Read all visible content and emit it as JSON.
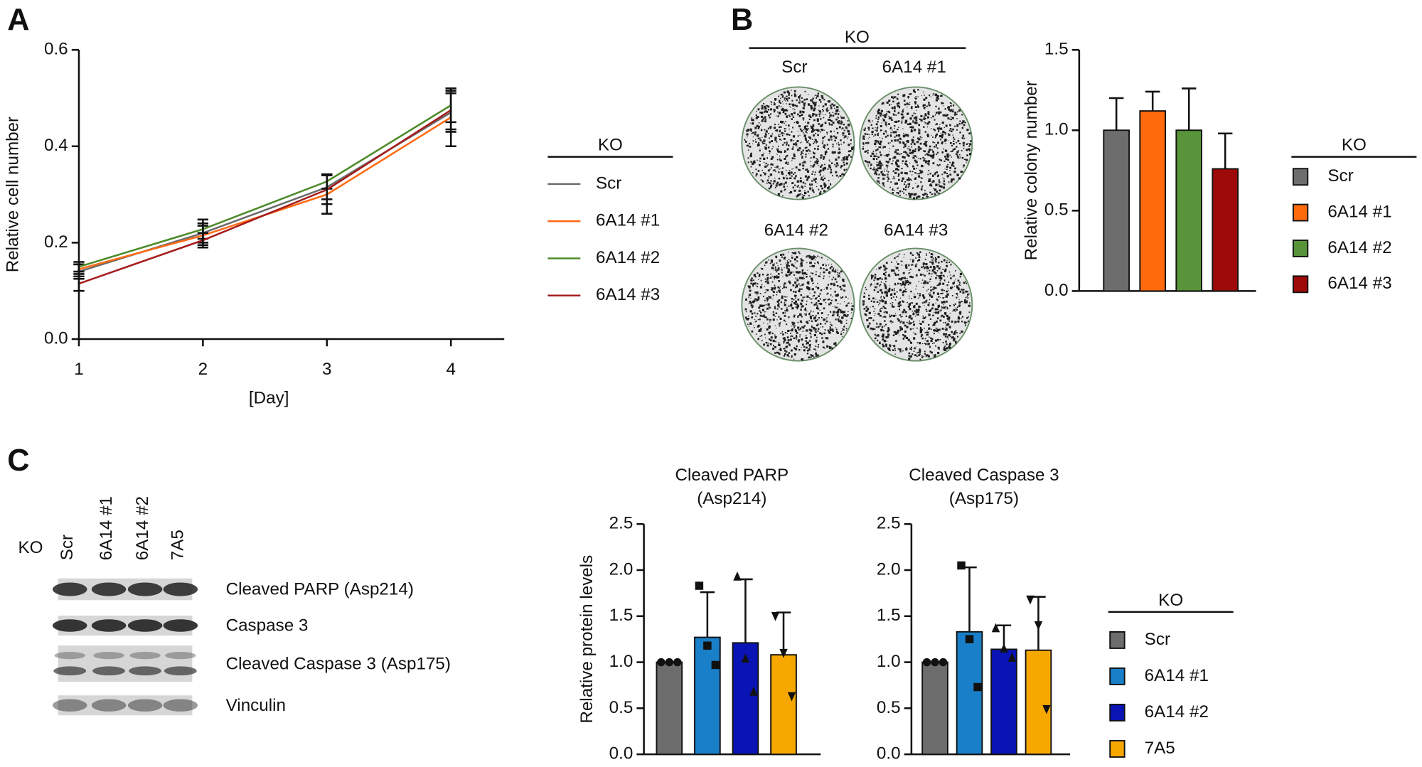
{
  "panel_labels": [
    "A",
    "B",
    "C"
  ],
  "colony_assay": {
    "header": "KO",
    "wells": [
      "Scr",
      "6A14 #1",
      "6A14 #2",
      "6A14 #3"
    ]
  },
  "western_blot": {
    "row_label": "KO",
    "lanes": [
      "Scr",
      "6A14 #1",
      "6A14 #2",
      "7A5"
    ],
    "bands": [
      "Cleaved PARP (Asp214)",
      "Caspase 3",
      "Cleaved Caspase 3 (Asp175)",
      "Vinculin"
    ]
  },
  "chart_data": [
    {
      "type": "line",
      "x": [
        1,
        2,
        3,
        4
      ],
      "xlim": [
        1,
        4.43
      ],
      "xticks": [
        1,
        2,
        3,
        4
      ],
      "ylim": [
        0,
        0.6
      ],
      "yticks": [
        {
          "value": 0,
          "label": "0.0"
        },
        0.2,
        0.4,
        0.6
      ],
      "xlabel": "[Day]",
      "ylabel": "Relative cell number",
      "legend_title": "KO",
      "series": [
        {
          "name": "Scr",
          "color": "#6b6b6b",
          "values": [
            0.14,
            0.22,
            0.315,
            0.47
          ],
          "errors": [
            0.015,
            0.02,
            0.025,
            0.04
          ]
        },
        {
          "name": "6A14 #1",
          "color": "#ff6a13",
          "values": [
            0.145,
            0.215,
            0.3,
            0.46
          ],
          "errors": [
            0.01,
            0.02,
            0.04,
            0.06
          ]
        },
        {
          "name": "6A14 #2",
          "color": "#4e8b2a",
          "values": [
            0.15,
            0.228,
            0.327,
            0.485
          ],
          "errors": [
            0.01,
            0.02,
            0.015,
            0.035
          ]
        },
        {
          "name": "6A14 #3",
          "color": "#a51c1c",
          "values": [
            0.115,
            0.205,
            0.31,
            0.475
          ],
          "errors": [
            0.015,
            0.015,
            0.03,
            0.04
          ]
        }
      ]
    },
    {
      "type": "bar",
      "categories": [
        "Scr",
        "6A14 #1",
        "6A14 #2",
        "6A14 #3"
      ],
      "values": [
        1.0,
        1.12,
        1.0,
        0.76
      ],
      "errors": [
        0.2,
        0.12,
        0.26,
        0.22
      ],
      "colors": [
        "#6d6d6d",
        "#ff6a0d",
        "#58943a",
        "#9e0a0a"
      ],
      "ylim": [
        0,
        1.5
      ],
      "yticks": [
        {
          "value": 0,
          "label": "0.0"
        },
        0.5,
        {
          "value": 1,
          "label": "1.0"
        },
        1.5
      ],
      "ylabel": "Relative colony number",
      "legend_title": "KO"
    },
    {
      "type": "bar",
      "title": "Cleaved PARP",
      "subtitle": "(Asp214)",
      "categories": [
        "Scr",
        "6A14 #1",
        "6A14 #2",
        "7A5"
      ],
      "values": [
        1.0,
        1.27,
        1.21,
        1.08
      ],
      "errors": [
        null,
        0.49,
        0.69,
        0.46
      ],
      "points": [
        [
          1.0,
          1.0,
          1.0
        ],
        [
          1.83,
          1.18,
          0.97
        ],
        [
          1.93,
          1.04,
          0.68
        ],
        [
          1.5,
          1.1,
          0.63
        ]
      ],
      "markers": [
        "circle",
        "square",
        "triangle",
        "triangle-down"
      ],
      "colors": [
        "#6d6d6d",
        "#1a7fc9",
        "#0a14b4",
        "#f7a800"
      ],
      "ylim": [
        0,
        2.5
      ],
      "yticks": [
        {
          "value": 0,
          "label": "0.0"
        },
        0.5,
        {
          "value": 1,
          "label": "1.0"
        },
        1.5,
        {
          "value": 2,
          "label": "2.0"
        },
        2.5
      ],
      "ylabel": "Relative protein levels"
    },
    {
      "type": "bar",
      "title": "Cleaved Caspase 3",
      "subtitle": "(Asp175)",
      "categories": [
        "Scr",
        "6A14 #1",
        "6A14 #2",
        "7A5"
      ],
      "values": [
        1.0,
        1.33,
        1.14,
        1.13
      ],
      "errors": [
        null,
        0.7,
        0.26,
        0.58
      ],
      "points": [
        [
          1.0,
          1.0,
          1.0
        ],
        [
          2.05,
          1.25,
          0.73
        ],
        [
          1.37,
          1.15,
          1.05
        ],
        [
          1.68,
          1.4,
          0.49
        ]
      ],
      "markers": [
        "circle",
        "square",
        "triangle",
        "triangle-down"
      ],
      "colors": [
        "#6d6d6d",
        "#1a7fc9",
        "#0a14b4",
        "#f7a800"
      ],
      "ylim": [
        0,
        2.5
      ],
      "yticks": [
        {
          "value": 0,
          "label": "0.0"
        },
        0.5,
        {
          "value": 1,
          "label": "1.0"
        },
        1.5,
        {
          "value": 2,
          "label": "2.0"
        },
        2.5
      ],
      "legend_title": "KO"
    }
  ]
}
